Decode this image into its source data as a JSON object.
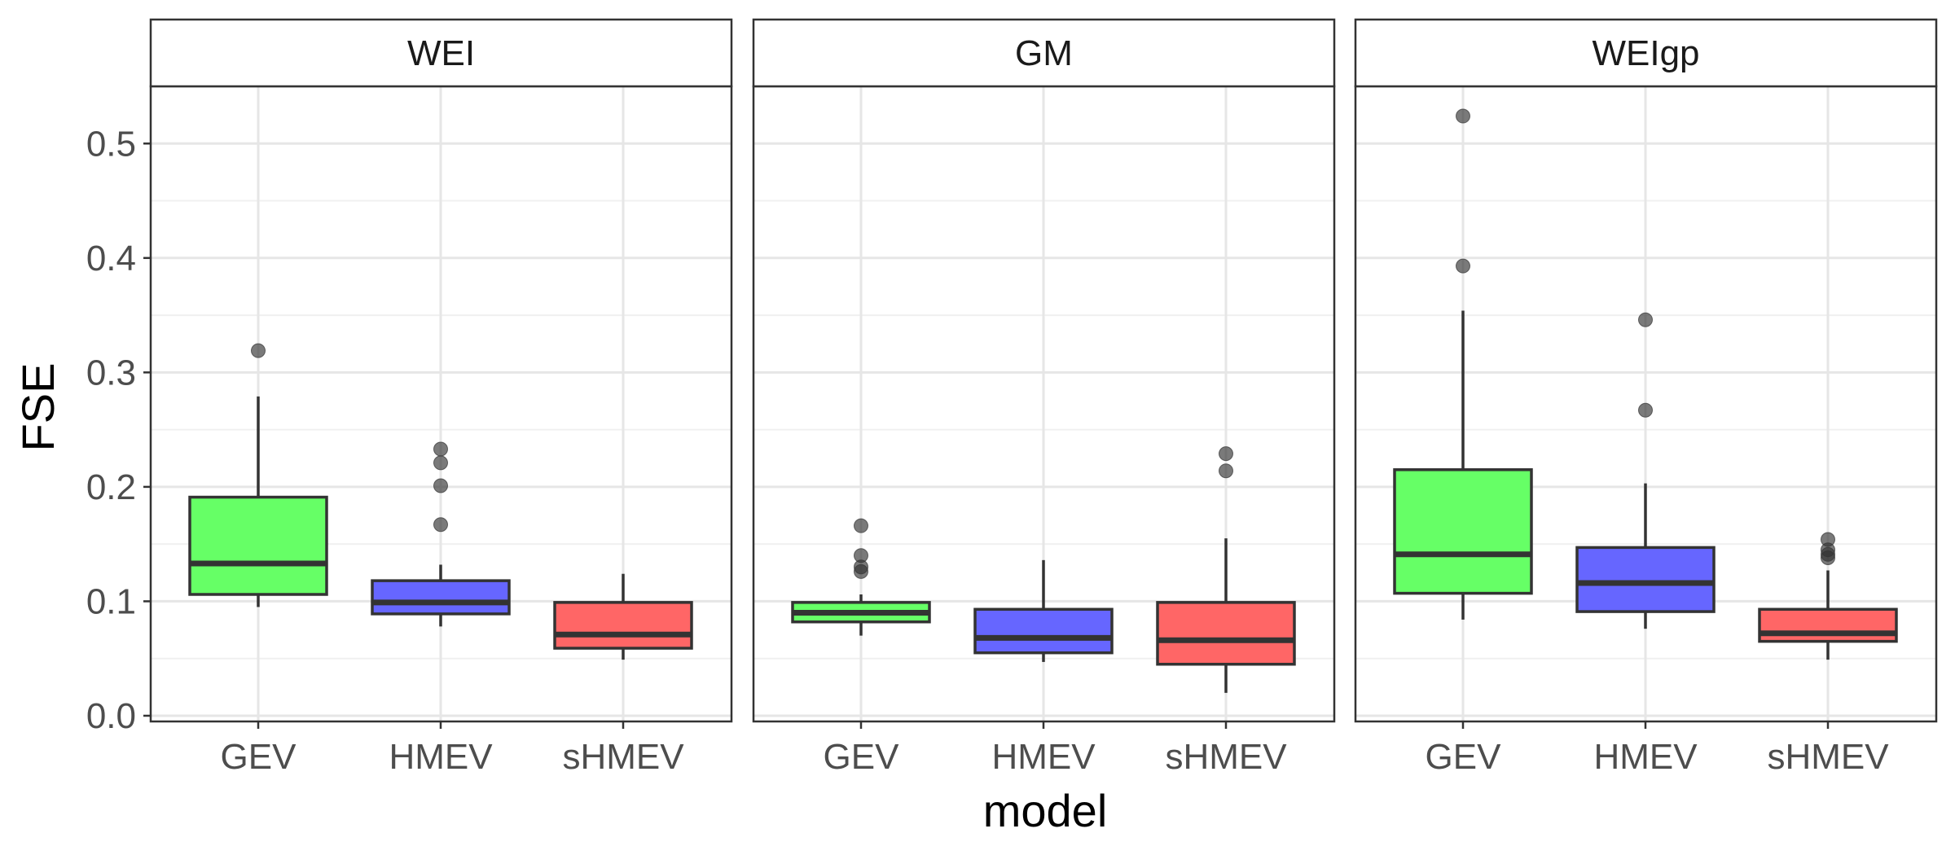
{
  "chart_data": {
    "type": "boxplot",
    "xlabel": "model",
    "ylabel": "FSE",
    "ylim": [
      -0.005,
      0.55
    ],
    "yticks": [
      "0.0",
      "0.1",
      "0.2",
      "0.3",
      "0.4",
      "0.5"
    ],
    "ytick_values": [
      0.0,
      0.1,
      0.2,
      0.3,
      0.4,
      0.5
    ],
    "categories": [
      "GEV",
      "HMEV",
      "sHMEV"
    ],
    "colors": {
      "GEV": "#66ff66",
      "HMEV": "#6666ff",
      "sHMEV": "#ff6666"
    },
    "panels": [
      {
        "name": "WEI",
        "boxes": [
          {
            "model": "GEV",
            "whisker_low": 0.095,
            "q1": 0.106,
            "median": 0.133,
            "q3": 0.191,
            "whisker_high": 0.279,
            "outliers": [
              0.319
            ]
          },
          {
            "model": "HMEV",
            "whisker_low": 0.078,
            "q1": 0.089,
            "median": 0.099,
            "q3": 0.118,
            "whisker_high": 0.132,
            "outliers": [
              0.167,
              0.201,
              0.221,
              0.233
            ]
          },
          {
            "model": "sHMEV",
            "whisker_low": 0.049,
            "q1": 0.059,
            "median": 0.071,
            "q3": 0.099,
            "whisker_high": 0.124,
            "outliers": []
          }
        ]
      },
      {
        "name": "GM",
        "boxes": [
          {
            "model": "GEV",
            "whisker_low": 0.07,
            "q1": 0.082,
            "median": 0.09,
            "q3": 0.099,
            "whisker_high": 0.106,
            "outliers": [
              0.126,
              0.13,
              0.14,
              0.166
            ]
          },
          {
            "model": "HMEV",
            "whisker_low": 0.047,
            "q1": 0.055,
            "median": 0.068,
            "q3": 0.093,
            "whisker_high": 0.136,
            "outliers": []
          },
          {
            "model": "sHMEV",
            "whisker_low": 0.02,
            "q1": 0.045,
            "median": 0.066,
            "q3": 0.099,
            "whisker_high": 0.155,
            "outliers": [
              0.214,
              0.229
            ]
          }
        ]
      },
      {
        "name": "WEIgp",
        "boxes": [
          {
            "model": "GEV",
            "whisker_low": 0.084,
            "q1": 0.107,
            "median": 0.141,
            "q3": 0.215,
            "whisker_high": 0.354,
            "outliers": [
              0.393,
              0.524
            ]
          },
          {
            "model": "HMEV",
            "whisker_low": 0.076,
            "q1": 0.091,
            "median": 0.116,
            "q3": 0.147,
            "whisker_high": 0.203,
            "outliers": [
              0.267,
              0.346
            ]
          },
          {
            "model": "sHMEV",
            "whisker_low": 0.049,
            "q1": 0.065,
            "median": 0.072,
            "q3": 0.093,
            "whisker_high": 0.127,
            "outliers": [
              0.138,
              0.141,
              0.145,
              0.154
            ]
          }
        ]
      }
    ]
  }
}
